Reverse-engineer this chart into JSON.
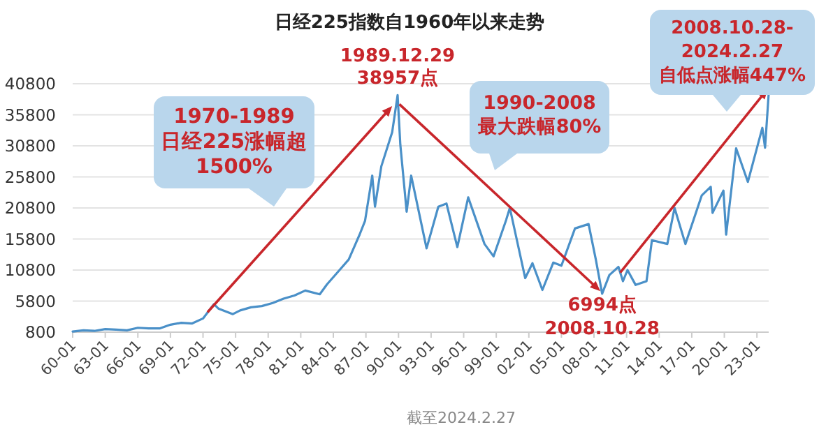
{
  "chart_data": {
    "type": "line",
    "title": "日经225指数自1960年以来走势",
    "x": [
      "1960-01",
      "1961-01",
      "1962-01",
      "1963-01",
      "1964-01",
      "1965-01",
      "1966-01",
      "1967-01",
      "1968-01",
      "1969-01",
      "1970-01",
      "1971-01",
      "1972-01",
      "1973-01",
      "1973-06",
      "1974-10",
      "1975-06",
      "1976-06",
      "1977-06",
      "1978-06",
      "1979-06",
      "1980-06",
      "1981-06",
      "1982-10",
      "1983-06",
      "1984-06",
      "1985-06",
      "1986-06",
      "1986-12",
      "1987-08",
      "1987-11",
      "1988-06",
      "1989-06",
      "1989-12",
      "1990-03",
      "1990-10",
      "1991-03",
      "1992-08",
      "1993-09",
      "1994-06",
      "1995-06",
      "1996-06",
      "1997-12",
      "1998-10",
      "1999-12",
      "2000-04",
      "2001-09",
      "2002-05",
      "2003-04",
      "2004-04",
      "2005-01",
      "2006-04",
      "2007-07",
      "2008-03",
      "2008-10",
      "2009-06",
      "2010-04",
      "2010-09",
      "2011-02",
      "2011-11",
      "2012-11",
      "2013-05",
      "2014-10",
      "2015-06",
      "2016-06",
      "2017-12",
      "2018-10",
      "2018-12",
      "2019-12",
      "2020-03",
      "2021-02",
      "2022-03",
      "2023-07",
      "2023-10",
      "2024-02"
    ],
    "series": [
      {
        "color": "#4a90c8",
        "values": [
          900,
          1100,
          1000,
          1300,
          1200,
          1100,
          1500,
          1400,
          1400,
          2000,
          2300,
          2200,
          3000,
          5300,
          4600,
          3700,
          4300,
          4800,
          5000,
          5500,
          6200,
          6700,
          7500,
          6900,
          8500,
          10500,
          12500,
          16500,
          18700,
          26000,
          21000,
          27500,
          33000,
          38957,
          31000,
          20200,
          26000,
          14300,
          21000,
          21500,
          14500,
          22500,
          15000,
          13000,
          18900,
          20800,
          9500,
          11900,
          7600,
          12000,
          11500,
          17500,
          18200,
          12500,
          6994,
          10000,
          11300,
          9000,
          10800,
          8400,
          9000,
          15600,
          15000,
          20800,
          15000,
          22800,
          24200,
          20000,
          23600,
          16500,
          30400,
          25000,
          33700,
          30500,
          39200
        ]
      }
    ],
    "xlim": [
      "1960-01",
      "2024-02"
    ],
    "xticks": [
      {
        "value": "1960-01",
        "label": "60-01"
      },
      {
        "value": "1963-01",
        "label": "63-01"
      },
      {
        "value": "1966-01",
        "label": "66-01"
      },
      {
        "value": "1969-01",
        "label": "69-01"
      },
      {
        "value": "1972-01",
        "label": "72-01"
      },
      {
        "value": "1975-01",
        "label": "75-01"
      },
      {
        "value": "1978-01",
        "label": "78-01"
      },
      {
        "value": "1981-01",
        "label": "81-01"
      },
      {
        "value": "1984-01",
        "label": "84-01"
      },
      {
        "value": "1987-01",
        "label": "87-01"
      },
      {
        "value": "1990-01",
        "label": "90-01"
      },
      {
        "value": "1993-01",
        "label": "93-01"
      },
      {
        "value": "1996-01",
        "label": "96-01"
      },
      {
        "value": "1999-01",
        "label": "99-01"
      },
      {
        "value": "2002-01",
        "label": "02-01"
      },
      {
        "value": "2005-01",
        "label": "05-01"
      },
      {
        "value": "2008-01",
        "label": "08-01"
      },
      {
        "value": "2011-01",
        "label": "11-01"
      },
      {
        "value": "2014-01",
        "label": "14-01"
      },
      {
        "value": "2017-01",
        "label": "17-01"
      },
      {
        "value": "2020-01",
        "label": "20-01"
      },
      {
        "value": "2023-01",
        "label": "23-01"
      }
    ],
    "ylim": [
      800,
      40800
    ],
    "yticks": [
      800,
      5800,
      10800,
      15800,
      20800,
      25800,
      30800,
      35800,
      40800
    ],
    "grid": "y",
    "annotations": [
      {
        "text": "1970-1989\n日经225涨幅超\n1500%"
      },
      {
        "text": "1990-2008\n最大跌幅80%"
      },
      {
        "text": "2008.10.28-\n2024.2.27\n自低点涨幅447%"
      },
      {
        "text": "1989.12.29\n38957点",
        "x": "1989-12",
        "y": 38957
      },
      {
        "text": "6994点\n2008.10.28",
        "x": "2008-10",
        "y": 6994
      },
      "截至2024.2.27"
    ]
  }
}
